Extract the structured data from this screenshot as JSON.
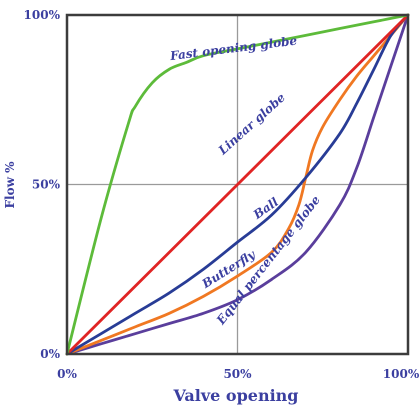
{
  "chart_data": {
    "type": "line",
    "title": "",
    "xlabel": "Valve opening",
    "ylabel": "Flow %",
    "xlim": [
      0,
      100
    ],
    "ylim": [
      0,
      100
    ],
    "x_ticks": [
      "0%",
      "50%",
      "100%"
    ],
    "y_ticks": [
      "0%",
      "50%",
      "100%"
    ],
    "grid": true,
    "legend": "none",
    "series": [
      {
        "name": "Fast opening globe",
        "color": "#5dbb3a",
        "x": [
          0,
          10,
          18,
          20,
          25,
          30,
          35,
          40,
          50,
          60,
          70,
          80,
          90,
          100
        ],
        "y": [
          0,
          40,
          68,
          73,
          80,
          84,
          86,
          88,
          90,
          92,
          94,
          96,
          98,
          100
        ]
      },
      {
        "name": "Linear globe",
        "color": "#e02424",
        "x": [
          0,
          100
        ],
        "y": [
          0,
          100
        ]
      },
      {
        "name": "Ball",
        "color": "#283c96",
        "x": [
          0,
          10,
          20,
          30,
          40,
          50,
          60,
          70,
          80,
          85,
          90,
          95,
          100
        ],
        "y": [
          0,
          6,
          12,
          18,
          25,
          33,
          41,
          52,
          65,
          74,
          84,
          94,
          100
        ]
      },
      {
        "name": "Butterfly",
        "color": "#f07822",
        "x": [
          0,
          10,
          20,
          30,
          40,
          50,
          60,
          65,
          68,
          70,
          72,
          75,
          80,
          85,
          90,
          95,
          100
        ],
        "y": [
          0,
          4,
          8,
          12,
          17,
          23,
          30,
          37,
          44,
          52,
          60,
          67,
          75,
          82,
          88,
          94,
          100
        ]
      },
      {
        "name": "Equal percentage globe",
        "color": "#5a3e9c",
        "x": [
          0,
          10,
          20,
          30,
          40,
          50,
          60,
          70,
          80,
          85,
          90,
          95,
          100
        ],
        "y": [
          0,
          3,
          6,
          9,
          12,
          16,
          22,
          30,
          44,
          55,
          70,
          85,
          100
        ]
      }
    ],
    "annotations": [
      {
        "text": "Fast opening globe",
        "x": 49,
        "y": 89,
        "angle": -7
      },
      {
        "text": "Linear globe",
        "x": 55,
        "y": 67,
        "angle": -42
      },
      {
        "text": "Ball",
        "x": 59,
        "y": 42,
        "angle": -35
      },
      {
        "text": "Butterfly",
        "x": 48,
        "y": 24,
        "angle": -32
      },
      {
        "text": "Equal percentage globe",
        "x": 60,
        "y": 27,
        "angle": -52
      }
    ]
  }
}
